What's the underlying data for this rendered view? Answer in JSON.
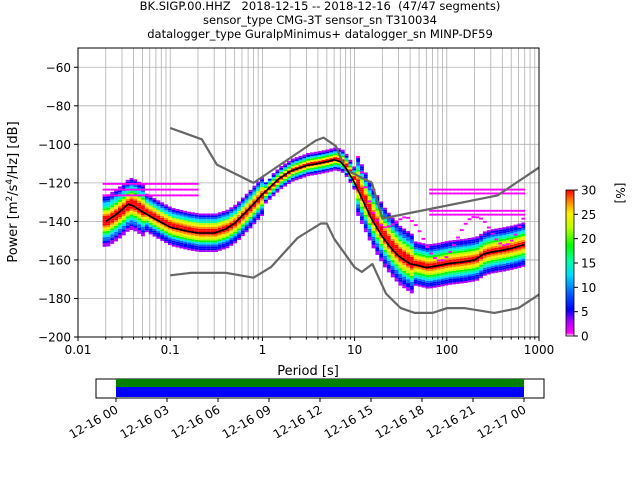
{
  "header": {
    "line1": "BK.SIGP.00.HHZ   2018-12-15 -- 2018-12-16  (47/47 segments)",
    "line2": "sensor_type CMG-3T sensor_sn T310034",
    "line3": "datalogger_type GuralpMinimus+ datalogger_sn MINP-DF59"
  },
  "colors": {
    "mean_curve": "#000000",
    "noise_models": "#666666",
    "grid": "#b0b0b0",
    "coverage_upper": "#008000",
    "coverage_lower": "#0000ff"
  },
  "chart_data": [
    {
      "type": "heatmap",
      "title": "",
      "xlabel": "Period [s]",
      "ylabel": "Power [m²/s⁴/Hz] [dB]",
      "xscale": "log",
      "xlim": [
        0.01,
        1000
      ],
      "ylim": [
        -200,
        -50
      ],
      "x_tick_labels": [
        "0.01",
        "0.1",
        "1",
        "10",
        "100",
        "1000"
      ],
      "y_tick_labels": [
        "−200",
        "−180",
        "−160",
        "−140",
        "−120",
        "−100",
        "−80",
        "−60"
      ],
      "y_ticks": [
        -200,
        -180,
        -160,
        -140,
        -120,
        -100,
        -80,
        -60
      ],
      "grid": true,
      "colorbar": {
        "label": "[%]",
        "range": [
          0,
          30
        ],
        "tick_labels": [
          "0",
          "5",
          "10",
          "15",
          "20",
          "25",
          "30"
        ]
      },
      "series": [
        {
          "role": "mean",
          "x": [
            0.02,
            0.025,
            0.03,
            0.035,
            0.04,
            0.05,
            0.07,
            0.1,
            0.15,
            0.2,
            0.3,
            0.4,
            0.5,
            0.7,
            1,
            1.5,
            2,
            3,
            4,
            5,
            6,
            7,
            8,
            10,
            12,
            15,
            20,
            25,
            30,
            40,
            50,
            60,
            80,
            100,
            150,
            200,
            250,
            300,
            400,
            500,
            600,
            700
          ],
          "y": [
            -140,
            -137,
            -134,
            -131,
            -132,
            -135,
            -139,
            -143,
            -145,
            -146,
            -146,
            -144,
            -141,
            -134,
            -126,
            -118,
            -114,
            -111,
            -110,
            -109,
            -108,
            -109,
            -112,
            -120,
            -128,
            -138,
            -148,
            -154,
            -158,
            -162,
            -163,
            -164,
            -163,
            -162,
            -161,
            -160,
            -157,
            -156,
            -155,
            -154,
            -153,
            -152
          ]
        },
        {
          "role": "noise_model_high",
          "x": [
            0.1,
            0.22,
            0.32,
            0.8,
            3.8,
            4.6,
            6.3,
            7.9,
            15.4,
            20,
            354.8,
            1000
          ],
          "y": [
            -91.5,
            -97.4,
            -110.5,
            -120,
            -98,
            -96.5,
            -101,
            -113,
            -120,
            -138.5,
            -126.5,
            -112
          ]
        },
        {
          "role": "noise_model_low",
          "x": [
            0.1,
            0.17,
            0.4,
            0.8,
            1.24,
            2.4,
            4.3,
            5,
            6,
            10,
            12,
            15.6,
            21.9,
            31.6,
            45,
            70,
            101,
            154,
            328,
            600,
            1000
          ],
          "y": [
            -168,
            -166.7,
            -166.7,
            -169.2,
            -163.7,
            -148.6,
            -141.1,
            -141.1,
            -149,
            -163.8,
            -166.2,
            -162.1,
            -177.5,
            -185,
            -187.5,
            -187.5,
            -185,
            -185,
            -187.5,
            -185,
            -178
          ]
        }
      ]
    },
    {
      "type": "bar",
      "title": "",
      "x_tick_labels": [
        "12-16 00",
        "12-16 03",
        "12-16 06",
        "12-16 09",
        "12-16 12",
        "12-16 15",
        "12-16 18",
        "12-16 21",
        "12-17 00"
      ],
      "series": [
        {
          "role": "available_data",
          "start": "12-16 00",
          "end": "12-17 00"
        },
        {
          "role": "used_data",
          "start": "12-16 00",
          "end": "12-17 00"
        }
      ]
    }
  ]
}
